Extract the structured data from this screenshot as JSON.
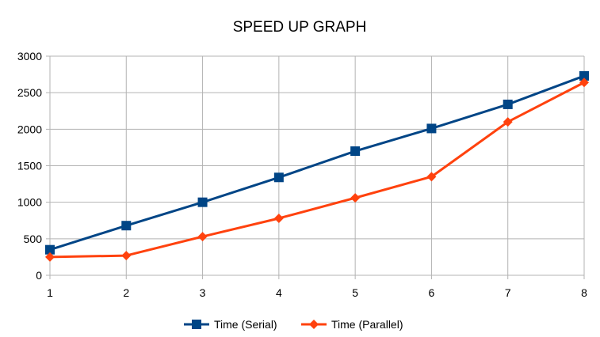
{
  "chart_data": {
    "type": "line",
    "title": "SPEED UP GRAPH",
    "xlabel": "",
    "ylabel": "",
    "x": [
      1,
      2,
      3,
      4,
      5,
      6,
      7,
      8
    ],
    "xlim": [
      1,
      8
    ],
    "ylim": [
      0,
      3000
    ],
    "yticks": [
      0,
      500,
      1000,
      1500,
      2000,
      2500,
      3000
    ],
    "grid": true,
    "legend_position": "bottom",
    "series": [
      {
        "name": "Time (Serial)",
        "color": "#004586",
        "marker": "square",
        "values": [
          350,
          680,
          1000,
          1340,
          1700,
          2010,
          2340,
          2730
        ]
      },
      {
        "name": "Time (Parallel)",
        "color": "#ff420e",
        "marker": "diamond",
        "values": [
          250,
          270,
          530,
          780,
          1060,
          1350,
          2100,
          2640
        ]
      }
    ]
  }
}
